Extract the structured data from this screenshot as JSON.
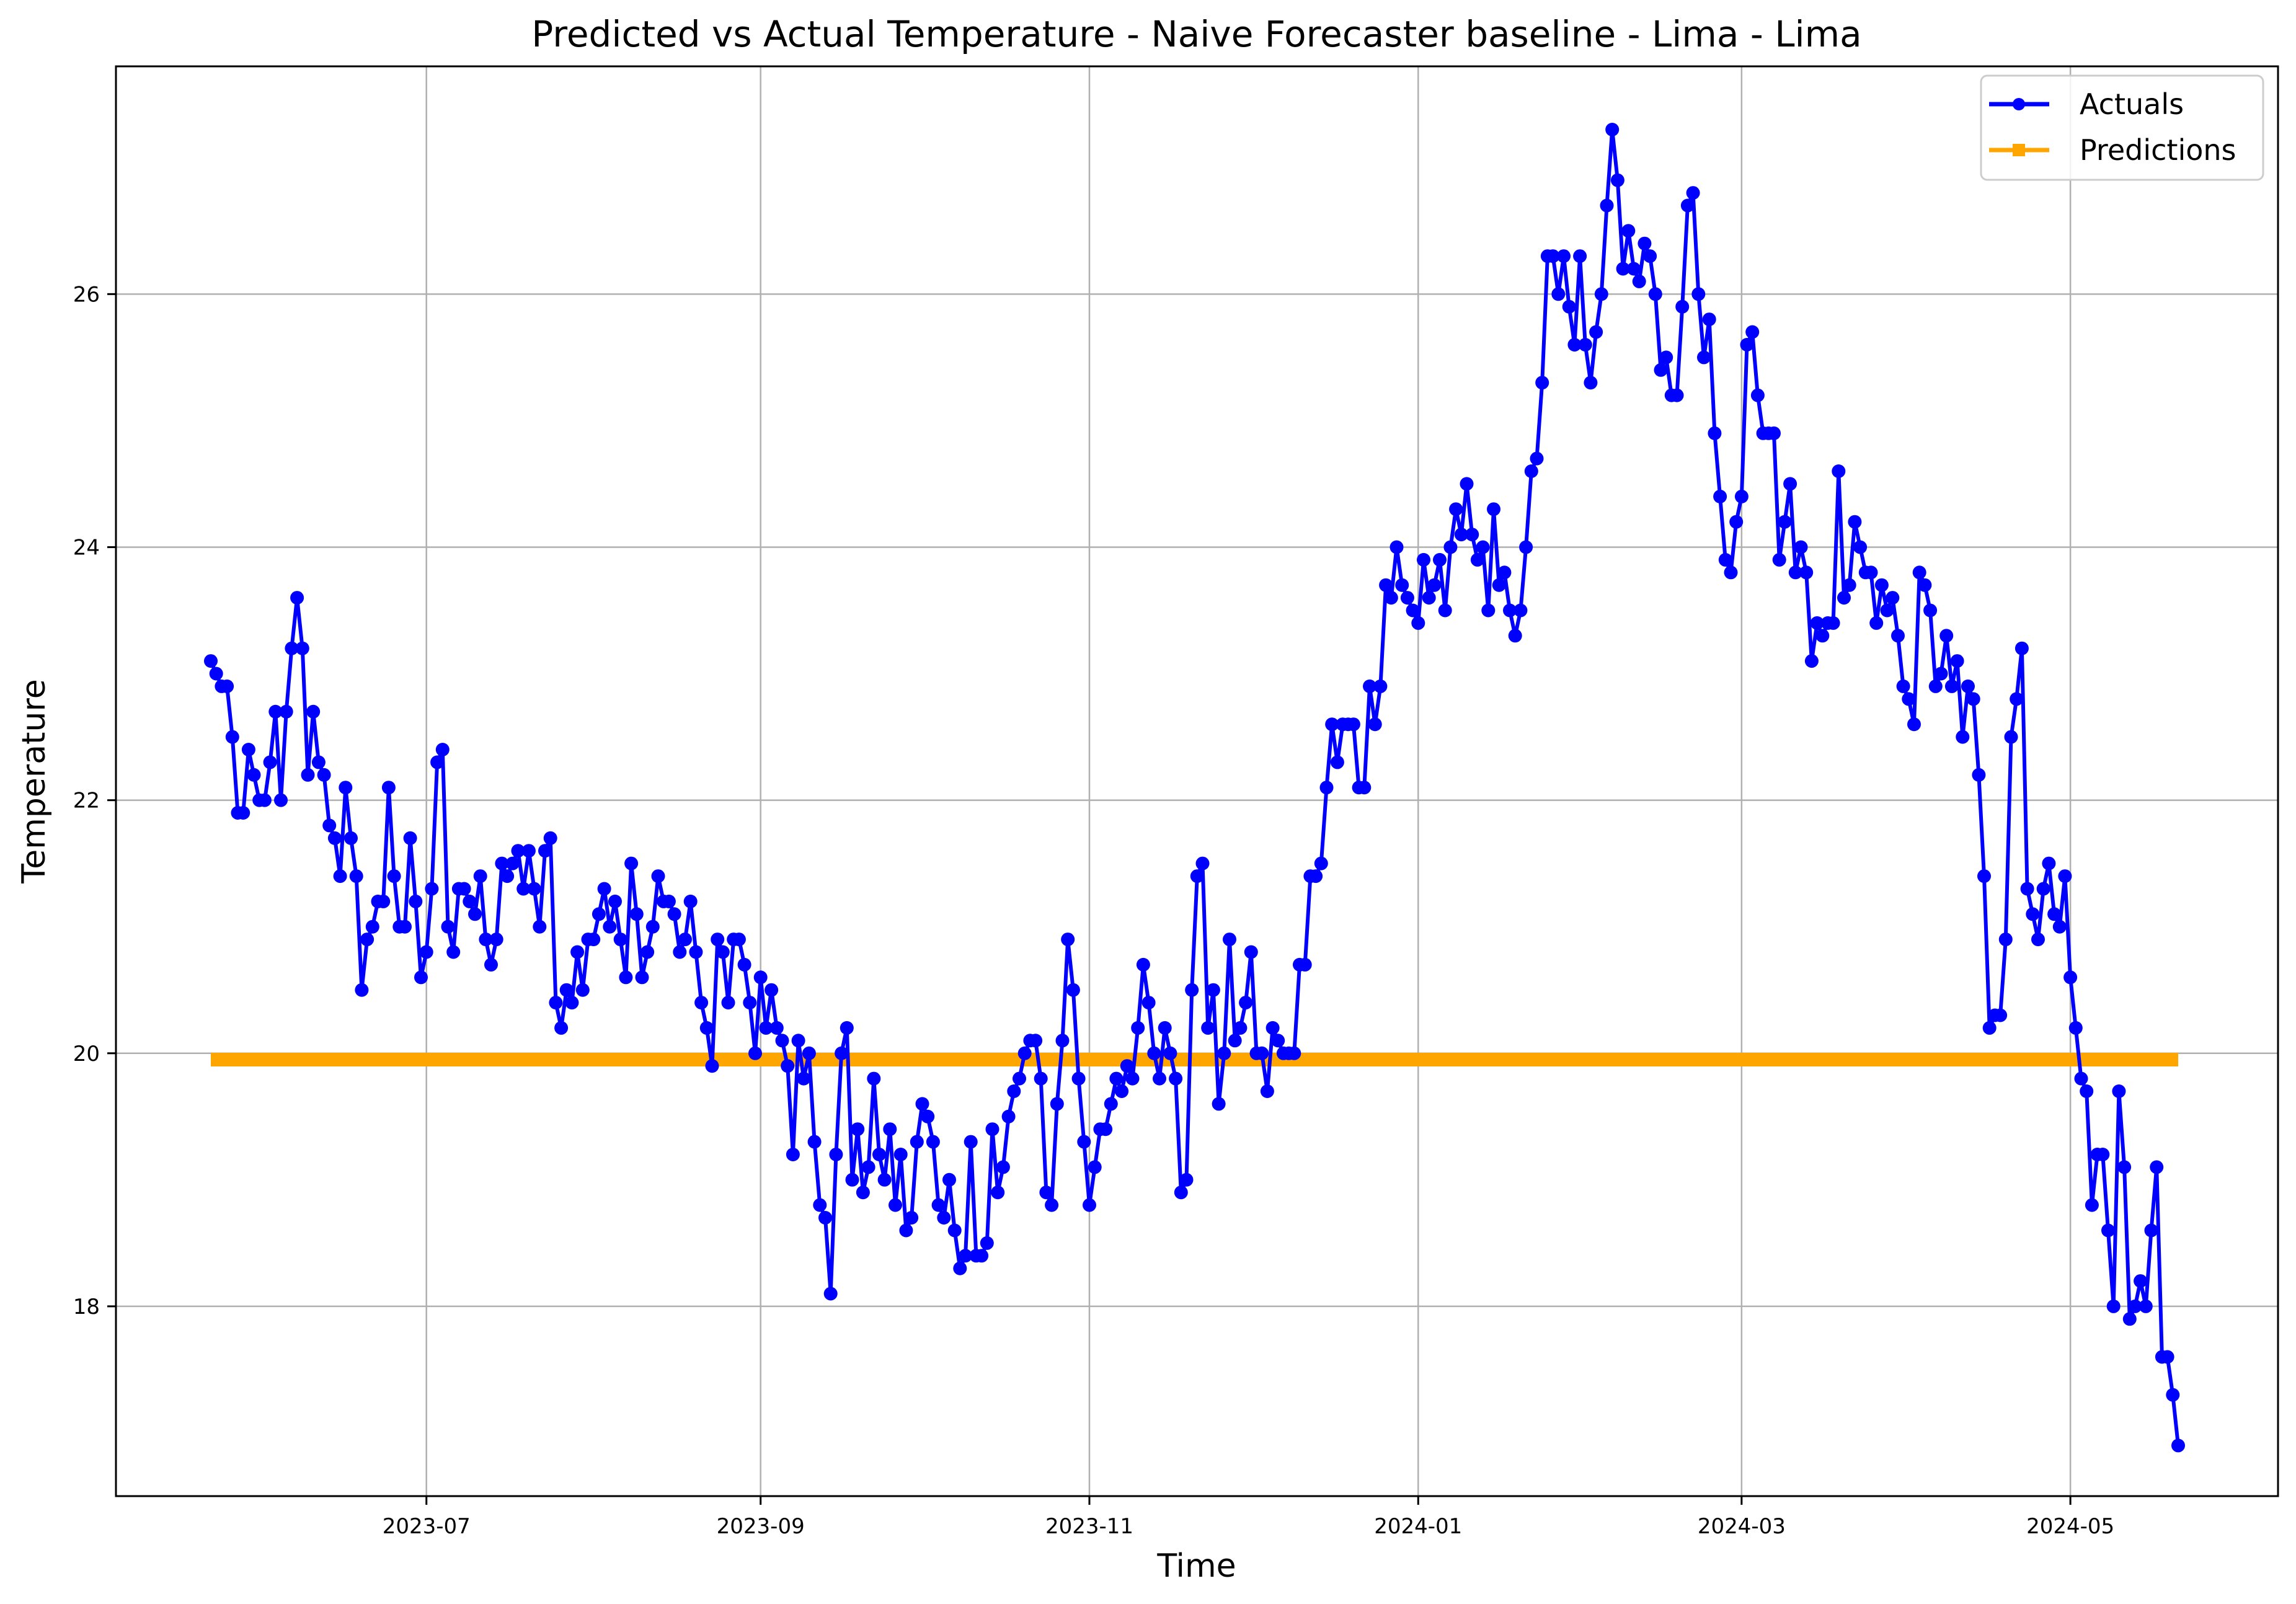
{
  "chart_data": {
    "type": "line",
    "title": "Predicted vs Actual Temperature - Naive Forecaster baseline - Lima - Lima",
    "xlabel": "Time",
    "ylabel": "Temperature",
    "x_tick_labels": [
      "2023-07",
      "2023-09",
      "2023-11",
      "2024-01",
      "2024-03",
      "2024-05"
    ],
    "y_tick_labels": [
      "18",
      "20",
      "22",
      "24",
      "26"
    ],
    "ylim": [
      16.5,
      27.8
    ],
    "grid": true,
    "legend_position": "top-right",
    "x_start": "2023-05-22",
    "x_end": "2024-05-21",
    "series": [
      {
        "name": "Actuals",
        "color": "#0000ff",
        "marker": "circle",
        "values": [
          23.1,
          23.0,
          22.9,
          22.9,
          22.5,
          21.9,
          21.9,
          22.4,
          22.2,
          22.0,
          22.0,
          22.3,
          22.7,
          22.0,
          22.7,
          23.2,
          23.6,
          23.2,
          22.2,
          22.7,
          22.3,
          22.2,
          21.8,
          21.7,
          21.4,
          22.1,
          21.7,
          21.4,
          20.5,
          20.9,
          21.0,
          21.2,
          21.2,
          22.1,
          21.4,
          21.0,
          21.0,
          21.7,
          21.2,
          20.6,
          20.8,
          21.3,
          22.3,
          22.4,
          21.0,
          20.8,
          21.3,
          21.3,
          21.2,
          21.1,
          21.4,
          20.9,
          20.7,
          20.9,
          21.5,
          21.4,
          21.5,
          21.6,
          21.3,
          21.6,
          21.3,
          21.0,
          21.6,
          21.7,
          20.4,
          20.2,
          20.5,
          20.4,
          20.8,
          20.5,
          20.9,
          20.9,
          21.1,
          21.3,
          21.0,
          21.2,
          20.9,
          20.6,
          21.5,
          21.1,
          20.6,
          20.8,
          21.0,
          21.4,
          21.2,
          21.2,
          21.1,
          20.8,
          20.9,
          21.2,
          20.8,
          20.4,
          20.2,
          19.9,
          20.9,
          20.8,
          20.4,
          20.9,
          20.9,
          20.7,
          20.4,
          20.0,
          20.6,
          20.2,
          20.5,
          20.2,
          20.1,
          19.9,
          19.2,
          20.1,
          19.8,
          20.0,
          19.3,
          18.8,
          18.7,
          18.1,
          19.2,
          20.0,
          20.2,
          19.0,
          19.4,
          18.9,
          19.1,
          19.8,
          19.2,
          19.0,
          19.4,
          18.8,
          19.2,
          18.6,
          18.7,
          19.3,
          19.6,
          19.5,
          19.3,
          18.8,
          18.7,
          19.0,
          18.6,
          18.3,
          18.4,
          19.3,
          18.4,
          18.4,
          18.5,
          19.4,
          18.9,
          19.1,
          19.5,
          19.7,
          19.8,
          20.0,
          20.1,
          20.1,
          19.8,
          18.9,
          18.8,
          19.6,
          20.1,
          20.9,
          20.5,
          19.8,
          19.3,
          18.8,
          19.1,
          19.4,
          19.4,
          19.6,
          19.8,
          19.7,
          19.9,
          19.8,
          20.2,
          20.7,
          20.4,
          20.0,
          19.8,
          20.2,
          20.0,
          19.8,
          18.9,
          19.0,
          20.5,
          21.4,
          21.5,
          20.2,
          20.5,
          19.6,
          20.0,
          20.9,
          20.1,
          20.2,
          20.4,
          20.8,
          20.0,
          20.0,
          19.7,
          20.2,
          20.1,
          20.0,
          20.0,
          20.0,
          20.7,
          20.7,
          21.4,
          21.4,
          21.5,
          22.1,
          22.6,
          22.3,
          22.6,
          22.6,
          22.6,
          22.1,
          22.1,
          22.9,
          22.6,
          22.9,
          23.7,
          23.6,
          24.0,
          23.7,
          23.6,
          23.5,
          23.4,
          23.9,
          23.6,
          23.7,
          23.9,
          23.5,
          24.0,
          24.3,
          24.1,
          24.5,
          24.1,
          23.9,
          24.0,
          23.5,
          24.3,
          23.7,
          23.8,
          23.5,
          23.3,
          23.5,
          24.0,
          24.6,
          24.7,
          25.3,
          26.3,
          26.3,
          26.0,
          26.3,
          25.9,
          25.6,
          26.3,
          25.6,
          25.3,
          25.7,
          26.0,
          26.7,
          27.3,
          26.9,
          26.2,
          26.5,
          26.2,
          26.1,
          26.4,
          26.3,
          26.0,
          25.4,
          25.5,
          25.2,
          25.2,
          25.9,
          26.7,
          26.8,
          26.0,
          25.5,
          25.8,
          24.9,
          24.4,
          23.9,
          23.8,
          24.2,
          24.4,
          25.6,
          25.7,
          25.2,
          24.9,
          24.9,
          24.9,
          23.9,
          24.2,
          24.5,
          23.8,
          24.0,
          23.8,
          23.1,
          23.4,
          23.3,
          23.4,
          23.4,
          24.6,
          23.6,
          23.7,
          24.2,
          24.0,
          23.8,
          23.8,
          23.4,
          23.7,
          23.5,
          23.6,
          23.3,
          22.9,
          22.8,
          22.6,
          23.8,
          23.7,
          23.5,
          22.9,
          23.0,
          23.3,
          22.9,
          23.1,
          22.5,
          22.9,
          22.8,
          22.2,
          21.4,
          20.2,
          20.3,
          20.3,
          20.9,
          22.5,
          22.8,
          23.2,
          21.3,
          21.1,
          20.9,
          21.3,
          21.5,
          21.1,
          21.0,
          21.4,
          20.6,
          20.2,
          19.8,
          19.7,
          18.8,
          19.2,
          19.2,
          18.6,
          18.0,
          19.7,
          19.1,
          17.9,
          18.0,
          18.2,
          18.0,
          18.6,
          19.1,
          17.6,
          17.6,
          17.3,
          16.9
        ]
      },
      {
        "name": "Predictions",
        "color": "#ffa500",
        "marker": "square",
        "values_constant": 19.95
      }
    ]
  }
}
